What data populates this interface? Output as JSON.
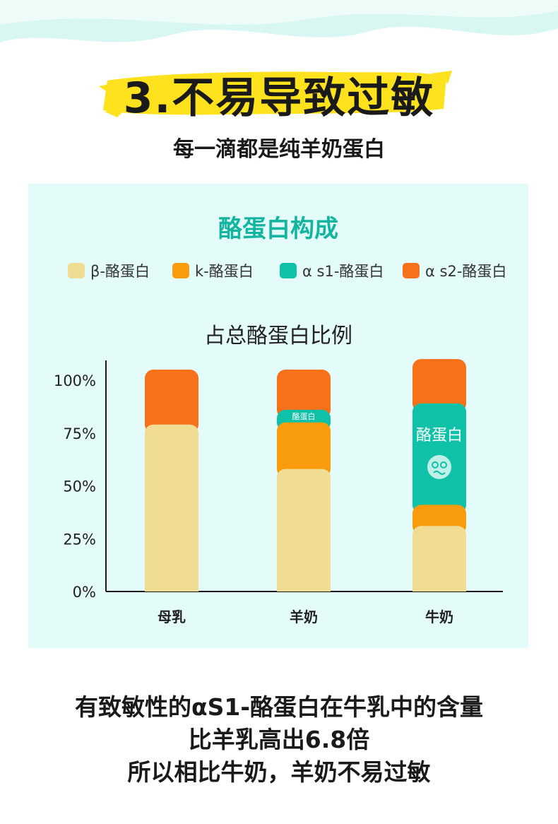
{
  "header": {
    "title": "3.不易导致过敏",
    "subtitle": "每一滴都是纯羊奶蛋白",
    "accent_color": "#fde21d",
    "wave_color": "#d8f6f2"
  },
  "panel": {
    "title": "酪蛋白构成",
    "title_color": "#13b5a0",
    "background": "#e3fbf9"
  },
  "chart_data": {
    "type": "bar",
    "stacked": true,
    "title": "占总酪蛋白比例",
    "categories": [
      "母乳",
      "羊奶",
      "牛奶"
    ],
    "yticks": [
      "100%",
      "75%",
      "50%",
      "25%",
      "0%"
    ],
    "ylim": [
      0,
      100
    ],
    "legend_position": "top",
    "series": [
      {
        "name": "β-酪蛋白",
        "color": "#f0dc92",
        "values": [
          79,
          58,
          31
        ]
      },
      {
        "name": "k-酪蛋白",
        "color": "#f89c0e",
        "values": [
          0,
          22,
          10
        ]
      },
      {
        "name": "α s1-酪蛋白",
        "color": "#0fc1a7",
        "values": [
          0,
          6,
          48
        ]
      },
      {
        "name": "α s2-酪蛋白",
        "color": "#f6711a",
        "values": [
          26,
          19,
          21
        ]
      }
    ],
    "annotations": [
      {
        "category": "羊奶",
        "series": "α s1-酪蛋白",
        "text": "酪蛋白",
        "size": "small"
      },
      {
        "category": "牛奶",
        "series": "α s1-酪蛋白",
        "text": "酪蛋白",
        "size": "large",
        "icon": "allergy-face-icon"
      }
    ]
  },
  "bottom": {
    "lines": [
      "有致敏性的αS1-酪蛋白在牛乳中的含量",
      "比羊乳高出6.8倍",
      "所以相比牛奶，羊奶不易过敏"
    ]
  }
}
